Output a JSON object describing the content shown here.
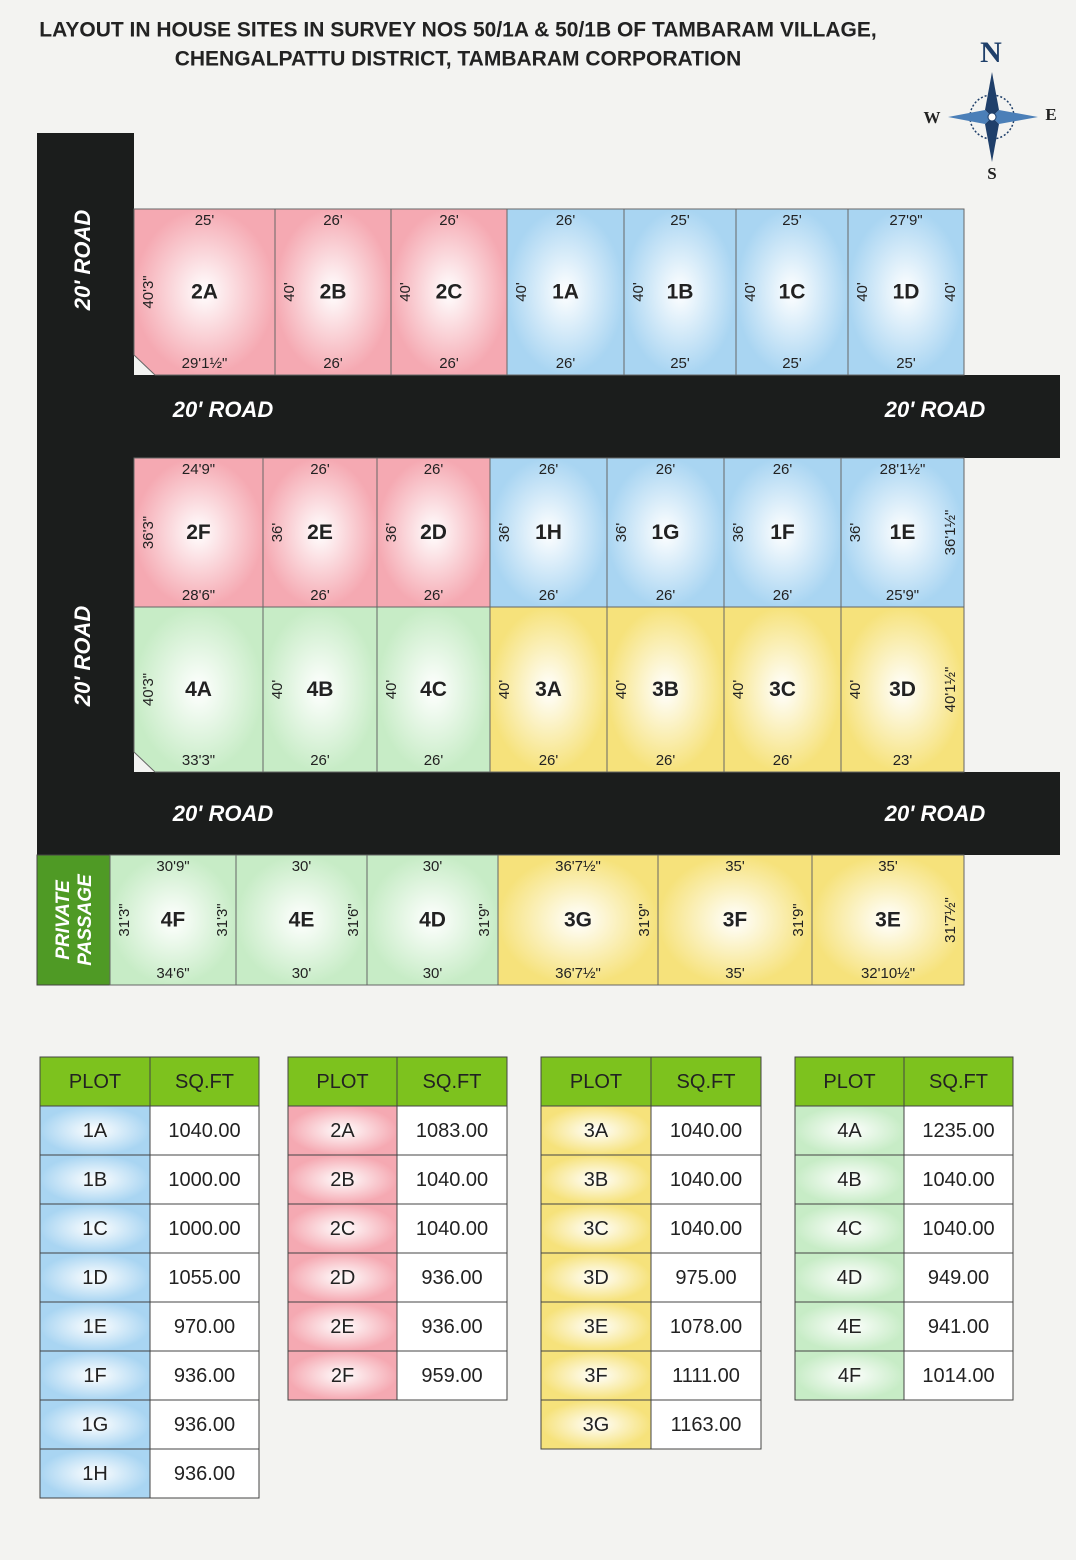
{
  "header": {
    "title": [
      "LAYOUT IN HOUSE SITES IN SURVEY NOS 50/1A & 50/1B OF TAMBARAM VILLAGE,",
      "CHENGALPATTU DISTRICT, TAMBARAM CORPORATION"
    ]
  },
  "compass": {
    "north": "N",
    "west": "W",
    "east": "E",
    "south": "S"
  },
  "roads": [
    "20' ROAD",
    "20' ROAD",
    "20' ROAD",
    "20' ROAD",
    "20' ROAD",
    "20' ROAD"
  ],
  "private_passage": [
    "PRIVATE",
    "PASSAGE"
  ],
  "plots": [
    {
      "name": "2A",
      "top": "25'",
      "bottom": "29'1½\"",
      "left": "40'3\""
    },
    {
      "name": "2B",
      "top": "26'",
      "bottom": "26'",
      "left": "40'"
    },
    {
      "name": "2C",
      "top": "26'",
      "bottom": "26'",
      "left": "40'"
    },
    {
      "name": "1A",
      "top": "26'",
      "bottom": "26'",
      "left": "40'"
    },
    {
      "name": "1B",
      "top": "25'",
      "bottom": "25'",
      "left": "40'"
    },
    {
      "name": "1C",
      "top": "25'",
      "bottom": "25'",
      "left": "40'"
    },
    {
      "name": "1D",
      "top": "27'9\"",
      "bottom": "25'",
      "left": "40'",
      "right": "40'"
    },
    {
      "name": "2F",
      "top": "24'9\"",
      "bottom": "28'6\"",
      "left": "36'3\""
    },
    {
      "name": "2E",
      "top": "26'",
      "bottom": "26'",
      "left": "36'"
    },
    {
      "name": "2D",
      "top": "26'",
      "bottom": "26'",
      "left": "36'"
    },
    {
      "name": "1H",
      "top": "26'",
      "bottom": "26'",
      "left": "36'"
    },
    {
      "name": "1G",
      "top": "26'",
      "bottom": "26'",
      "left": "36'"
    },
    {
      "name": "1F",
      "top": "26'",
      "bottom": "26'",
      "left": "36'"
    },
    {
      "name": "1E",
      "top": "28'1½\"",
      "bottom": "25'9\"",
      "left": "36'",
      "right": "36'1½\""
    },
    {
      "name": "4A",
      "bottom": "33'3\"",
      "left": "40'3\""
    },
    {
      "name": "4B",
      "bottom": "26'",
      "left": "40'"
    },
    {
      "name": "4C",
      "bottom": "26'",
      "left": "40'"
    },
    {
      "name": "3A",
      "bottom": "26'",
      "left": "40'"
    },
    {
      "name": "3B",
      "bottom": "26'",
      "left": "40'"
    },
    {
      "name": "3C",
      "bottom": "26'",
      "left": "40'"
    },
    {
      "name": "3D",
      "bottom": "23'",
      "left": "40'",
      "right": "40'1½\""
    },
    {
      "name": "4F",
      "top": "30'9\"",
      "bottom": "34'6\"",
      "left": "31'3\"",
      "right": "31'3\""
    },
    {
      "name": "4E",
      "top": "30'",
      "bottom": "30'",
      "right": "31'6\""
    },
    {
      "name": "4D",
      "top": "30'",
      "bottom": "30'",
      "right": "31'9\""
    },
    {
      "name": "3G",
      "top": "36'7½\"",
      "bottom": "36'7½\"",
      "right": "31'9\""
    },
    {
      "name": "3F",
      "top": "35'",
      "bottom": "35'",
      "right": "31'9\""
    },
    {
      "name": "3E",
      "top": "35'",
      "bottom": "32'10½\"",
      "right": "31'7½\""
    }
  ],
  "tables": [
    {
      "header": [
        "PLOT",
        "SQ.FT"
      ],
      "rows": [
        [
          "1A",
          "1040.00"
        ],
        [
          "1B",
          "1000.00"
        ],
        [
          "1C",
          "1000.00"
        ],
        [
          "1D",
          "1055.00"
        ],
        [
          "1E",
          "970.00"
        ],
        [
          "1F",
          "936.00"
        ],
        [
          "1G",
          "936.00"
        ],
        [
          "1H",
          "936.00"
        ]
      ]
    },
    {
      "header": [
        "PLOT",
        "SQ.FT"
      ],
      "rows": [
        [
          "2A",
          "1083.00"
        ],
        [
          "2B",
          "1040.00"
        ],
        [
          "2C",
          "1040.00"
        ],
        [
          "2D",
          "936.00"
        ],
        [
          "2E",
          "936.00"
        ],
        [
          "2F",
          "959.00"
        ]
      ]
    },
    {
      "header": [
        "PLOT",
        "SQ.FT"
      ],
      "rows": [
        [
          "3A",
          "1040.00"
        ],
        [
          "3B",
          "1040.00"
        ],
        [
          "3C",
          "1040.00"
        ],
        [
          "3D",
          "975.00"
        ],
        [
          "3E",
          "1078.00"
        ],
        [
          "3F",
          "1111.00"
        ],
        [
          "3G",
          "1163.00"
        ]
      ]
    },
    {
      "header": [
        "PLOT",
        "SQ.FT"
      ],
      "rows": [
        [
          "4A",
          "1235.00"
        ],
        [
          "4B",
          "1040.00"
        ],
        [
          "4C",
          "1040.00"
        ],
        [
          "4D",
          "949.00"
        ],
        [
          "4E",
          "941.00"
        ],
        [
          "4F",
          "1014.00"
        ]
      ]
    }
  ]
}
